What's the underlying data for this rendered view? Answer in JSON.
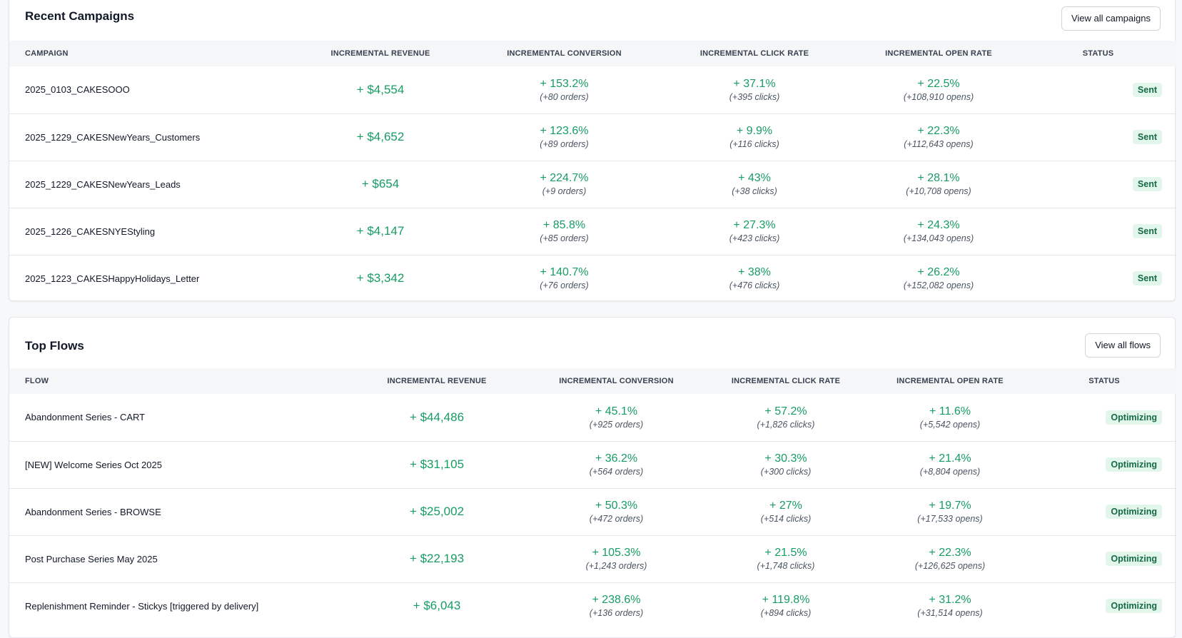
{
  "campaigns": {
    "title": "Recent Campaigns",
    "view_all_label": "View all campaigns",
    "headers": {
      "name": "CAMPAIGN",
      "revenue": "INCREMENTAL REVENUE",
      "conversion": "INCREMENTAL CONVERSION",
      "click": "INCREMENTAL CLICK RATE",
      "open": "INCREMENTAL OPEN RATE",
      "status": "STATUS"
    },
    "rows": [
      {
        "name": "2025_0103_CAKESOOO",
        "revenue": "+ $4,554",
        "conv_pct": "+ 153.2%",
        "conv_sub": "(+80 orders)",
        "click_pct": "+ 37.1%",
        "click_sub": "(+395 clicks)",
        "open_pct": "+ 22.5%",
        "open_sub": "(+108,910 opens)",
        "status": "Sent"
      },
      {
        "name": "2025_1229_CAKESNewYears_Customers",
        "revenue": "+ $4,652",
        "conv_pct": "+ 123.6%",
        "conv_sub": "(+89 orders)",
        "click_pct": "+ 9.9%",
        "click_sub": "(+116 clicks)",
        "open_pct": "+ 22.3%",
        "open_sub": "(+112,643 opens)",
        "status": "Sent"
      },
      {
        "name": "2025_1229_CAKESNewYears_Leads",
        "revenue": "+ $654",
        "conv_pct": "+ 224.7%",
        "conv_sub": "(+9 orders)",
        "click_pct": "+ 43%",
        "click_sub": "(+38 clicks)",
        "open_pct": "+ 28.1%",
        "open_sub": "(+10,708 opens)",
        "status": "Sent"
      },
      {
        "name": "2025_1226_CAKESNYEStyling",
        "revenue": "+ $4,147",
        "conv_pct": "+ 85.8%",
        "conv_sub": "(+85 orders)",
        "click_pct": "+ 27.3%",
        "click_sub": "(+423 clicks)",
        "open_pct": "+ 24.3%",
        "open_sub": "(+134,043 opens)",
        "status": "Sent"
      },
      {
        "name": "2025_1223_CAKESHappyHolidays_Letter",
        "revenue": "+ $3,342",
        "conv_pct": "+ 140.7%",
        "conv_sub": "(+76 orders)",
        "click_pct": "+ 38%",
        "click_sub": "(+476 clicks)",
        "open_pct": "+ 26.2%",
        "open_sub": "(+152,082 opens)",
        "status": "Sent"
      }
    ]
  },
  "flows": {
    "title": "Top Flows",
    "view_all_label": "View all flows",
    "headers": {
      "name": "FLOW",
      "revenue": "INCREMENTAL REVENUE",
      "conversion": "INCREMENTAL CONVERSION",
      "click": "INCREMENTAL CLICK RATE",
      "open": "INCREMENTAL OPEN RATE",
      "status": "STATUS"
    },
    "rows": [
      {
        "name": "Abandonment Series - CART",
        "revenue": "+ $44,486",
        "conv_pct": "+ 45.1%",
        "conv_sub": "(+925 orders)",
        "click_pct": "+ 57.2%",
        "click_sub": "(+1,826 clicks)",
        "open_pct": "+ 11.6%",
        "open_sub": "(+5,542 opens)",
        "status": "Optimizing"
      },
      {
        "name": "[NEW] Welcome Series Oct 2025",
        "revenue": "+ $31,105",
        "conv_pct": "+ 36.2%",
        "conv_sub": "(+564 orders)",
        "click_pct": "+ 30.3%",
        "click_sub": "(+300 clicks)",
        "open_pct": "+ 21.4%",
        "open_sub": "(+8,804 opens)",
        "status": "Optimizing"
      },
      {
        "name": "Abandonment Series - BROWSE",
        "revenue": "+ $25,002",
        "conv_pct": "+ 50.3%",
        "conv_sub": "(+472 orders)",
        "click_pct": "+ 27%",
        "click_sub": "(+514 clicks)",
        "open_pct": "+ 19.7%",
        "open_sub": "(+17,533 opens)",
        "status": "Optimizing"
      },
      {
        "name": "Post Purchase Series May 2025",
        "revenue": "+ $22,193",
        "conv_pct": "+ 105.3%",
        "conv_sub": "(+1,243 orders)",
        "click_pct": "+ 21.5%",
        "click_sub": "(+1,748 clicks)",
        "open_pct": "+ 22.3%",
        "open_sub": "(+126,625 opens)",
        "status": "Optimizing"
      },
      {
        "name": "Replenishment Reminder - Stickys [triggered by delivery]",
        "revenue": "+ $6,043",
        "conv_pct": "+ 238.6%",
        "conv_sub": "(+136 orders)",
        "click_pct": "+ 119.8%",
        "click_sub": "(+894 clicks)",
        "open_pct": "+ 31.2%",
        "open_sub": "(+31,514 opens)",
        "status": "Optimizing"
      }
    ]
  },
  "colors": {
    "positive": "#179c62",
    "badge_bg": "#e3f6ec",
    "badge_text": "#156b45"
  }
}
